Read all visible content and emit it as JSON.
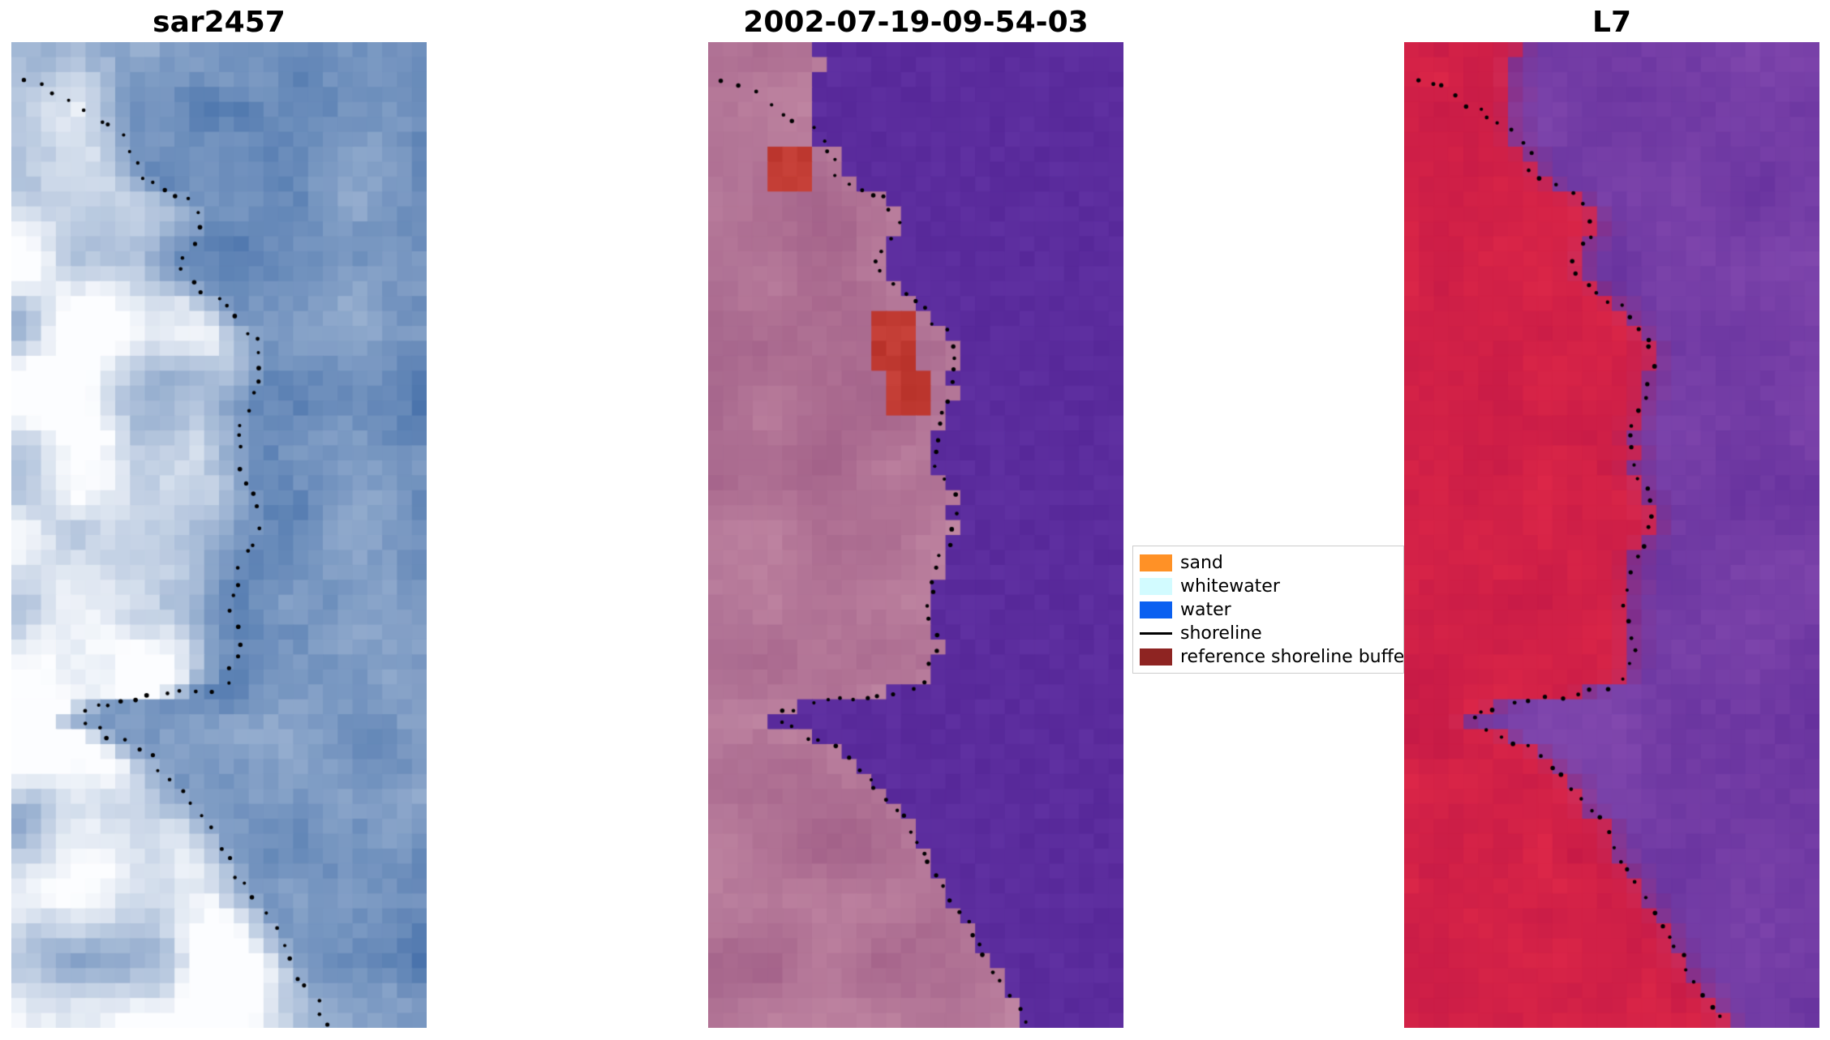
{
  "figure": {
    "background": "#ffffff",
    "panels": [
      {
        "title": "sar2457"
      },
      {
        "title": "2002-07-19-09-54-03"
      },
      {
        "title": "L7"
      }
    ]
  },
  "legend": {
    "items": [
      {
        "label": "sand",
        "color": "#ff9126",
        "type": "patch"
      },
      {
        "label": "whitewater",
        "color": "#d2fbff",
        "type": "patch"
      },
      {
        "label": "water",
        "color": "#0b60f0",
        "type": "patch"
      },
      {
        "label": "shoreline",
        "color": "#000000",
        "type": "line"
      },
      {
        "label": "reference shoreline buffer",
        "color": "#8e2422",
        "type": "patch"
      }
    ]
  },
  "chart_data": {
    "type": "satellite-image-comparison",
    "description": "Three co-registered coastal image chips with a dotted detected shoreline overlaid: a SAR backscatter image, a classified optical composite dated 2002-07-19-09-54-03, and a Landsat 7 false-color image. Land occupies the left of each chip, water the right, with a wedge-shaped inlet about two-thirds down.",
    "grid": {
      "cols": 28,
      "rows": 66
    },
    "shoreline": {
      "color": "#000000",
      "style": "dotted-point-markers"
    },
    "panels": [
      {
        "title": "sar2457",
        "kind": "sar-backscatter",
        "palette": {
          "water_deep": "#3a67a4",
          "land_bright": "#fcfdff"
        }
      },
      {
        "title": "2002-07-19-09-54-03",
        "kind": "classified-composite",
        "palette": {
          "water": "#5b2c9d",
          "land_dark": "#9d5a84",
          "land_light": "#c890a9",
          "red_patch": "#c03a32"
        },
        "red_patches": [
          [
            0.157,
            0.103,
            0.253,
            0.159
          ],
          [
            0.41,
            0.28,
            0.495,
            0.338
          ],
          [
            0.445,
            0.338,
            0.53,
            0.374
          ]
        ]
      },
      {
        "title": "L7",
        "kind": "landsat-false-color",
        "palette": {
          "land_dark": "#bf1646",
          "land_light": "#e22a48",
          "water_dark": "#612d9a",
          "water_light": "#8a4fb3"
        }
      }
    ],
    "shoreline_path": [
      [
        0.02,
        0.038
      ],
      [
        0.09,
        0.046
      ],
      [
        0.17,
        0.068
      ],
      [
        0.26,
        0.09
      ],
      [
        0.3,
        0.115
      ],
      [
        0.305,
        0.135
      ],
      [
        0.37,
        0.148
      ],
      [
        0.42,
        0.156
      ],
      [
        0.45,
        0.175
      ],
      [
        0.462,
        0.19
      ],
      [
        0.42,
        0.21
      ],
      [
        0.4,
        0.228
      ],
      [
        0.46,
        0.25
      ],
      [
        0.51,
        0.265
      ],
      [
        0.55,
        0.285
      ],
      [
        0.59,
        0.3
      ],
      [
        0.6,
        0.32
      ],
      [
        0.585,
        0.355
      ],
      [
        0.558,
        0.38
      ],
      [
        0.545,
        0.41
      ],
      [
        0.552,
        0.435
      ],
      [
        0.585,
        0.455
      ],
      [
        0.6,
        0.48
      ],
      [
        0.585,
        0.5
      ],
      [
        0.552,
        0.53
      ],
      [
        0.535,
        0.555
      ],
      [
        0.53,
        0.58
      ],
      [
        0.545,
        0.6
      ],
      [
        0.55,
        0.62
      ],
      [
        0.522,
        0.645
      ],
      [
        0.51,
        0.655
      ],
      [
        0.4,
        0.662
      ],
      [
        0.28,
        0.668
      ],
      [
        0.185,
        0.678
      ],
      [
        0.165,
        0.69
      ],
      [
        0.22,
        0.7
      ],
      [
        0.28,
        0.712
      ],
      [
        0.33,
        0.725
      ],
      [
        0.37,
        0.74
      ],
      [
        0.4,
        0.755
      ],
      [
        0.43,
        0.77
      ],
      [
        0.462,
        0.785
      ],
      [
        0.49,
        0.8
      ],
      [
        0.52,
        0.825
      ],
      [
        0.545,
        0.845
      ],
      [
        0.575,
        0.865
      ],
      [
        0.61,
        0.885
      ],
      [
        0.64,
        0.905
      ],
      [
        0.665,
        0.925
      ],
      [
        0.69,
        0.945
      ],
      [
        0.72,
        0.965
      ],
      [
        0.75,
        0.985
      ],
      [
        0.77,
        1.0
      ]
    ],
    "land_boundary_path": [
      [
        0.26,
        0.0
      ],
      [
        0.26,
        0.09
      ],
      [
        0.3,
        0.115
      ],
      [
        0.305,
        0.135
      ],
      [
        0.37,
        0.148
      ],
      [
        0.42,
        0.156
      ],
      [
        0.45,
        0.175
      ],
      [
        0.462,
        0.19
      ],
      [
        0.42,
        0.21
      ],
      [
        0.4,
        0.228
      ],
      [
        0.46,
        0.25
      ],
      [
        0.51,
        0.265
      ],
      [
        0.55,
        0.285
      ],
      [
        0.59,
        0.3
      ],
      [
        0.6,
        0.32
      ],
      [
        0.585,
        0.355
      ],
      [
        0.558,
        0.38
      ],
      [
        0.545,
        0.41
      ],
      [
        0.552,
        0.435
      ],
      [
        0.585,
        0.455
      ],
      [
        0.6,
        0.48
      ],
      [
        0.585,
        0.5
      ],
      [
        0.552,
        0.53
      ],
      [
        0.535,
        0.555
      ],
      [
        0.53,
        0.58
      ],
      [
        0.545,
        0.6
      ],
      [
        0.55,
        0.62
      ],
      [
        0.522,
        0.645
      ],
      [
        0.51,
        0.655
      ],
      [
        0.4,
        0.662
      ],
      [
        0.28,
        0.668
      ],
      [
        0.185,
        0.678
      ],
      [
        0.165,
        0.69
      ],
      [
        0.22,
        0.7
      ],
      [
        0.28,
        0.712
      ],
      [
        0.33,
        0.725
      ],
      [
        0.37,
        0.74
      ],
      [
        0.4,
        0.755
      ],
      [
        0.43,
        0.77
      ],
      [
        0.462,
        0.785
      ],
      [
        0.49,
        0.8
      ],
      [
        0.52,
        0.825
      ],
      [
        0.545,
        0.845
      ],
      [
        0.575,
        0.865
      ],
      [
        0.61,
        0.885
      ],
      [
        0.64,
        0.905
      ],
      [
        0.665,
        0.925
      ],
      [
        0.69,
        0.945
      ],
      [
        0.72,
        0.965
      ],
      [
        0.75,
        0.985
      ],
      [
        0.77,
        1.0
      ]
    ]
  }
}
